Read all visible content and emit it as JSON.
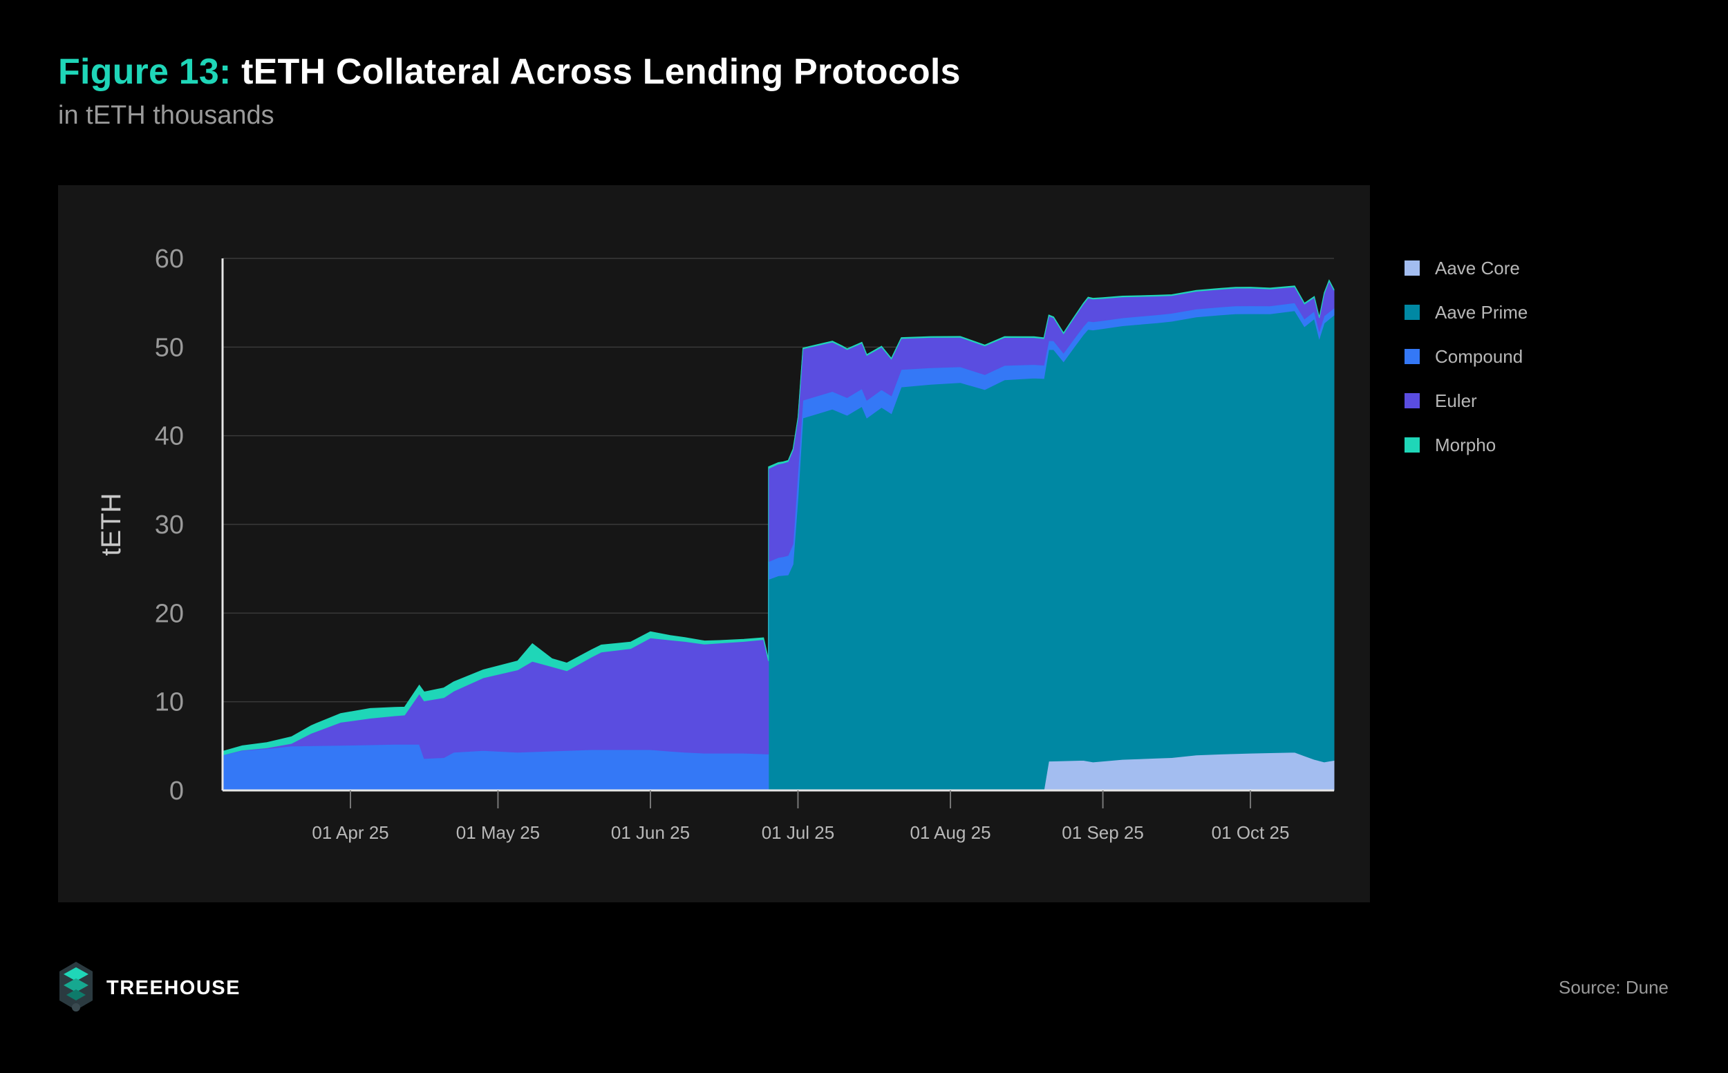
{
  "figure": {
    "label": "Figure 13:",
    "title": "tETH Collateral Across Lending Protocols",
    "subtitle": "in tETH thousands",
    "label_color": "#1fd6b8"
  },
  "brand": {
    "name": "TREEHOUSE",
    "logo_icon": "treehouse-logo-icon"
  },
  "source": "Source: Dune",
  "chart_data": {
    "type": "area",
    "stacked": true,
    "ylabel": "tETH",
    "xlabel": "",
    "ylim": [
      0,
      60
    ],
    "yticks": [
      "0",
      "10",
      "20",
      "30",
      "40",
      "50",
      "60"
    ],
    "x_range": [
      "2025-03-06",
      "2025-10-18"
    ],
    "xticks": [
      {
        "date": "2025-04-01",
        "label": "01 Apr 25"
      },
      {
        "date": "2025-05-01",
        "label": "01 May 25"
      },
      {
        "date": "2025-06-01",
        "label": "01 Jun 25"
      },
      {
        "date": "2025-07-01",
        "label": "01 Jul 25"
      },
      {
        "date": "2025-08-01",
        "label": "01 Aug 25"
      },
      {
        "date": "2025-09-01",
        "label": "01 Sep 25"
      },
      {
        "date": "2025-10-01",
        "label": "01 Oct 25"
      }
    ],
    "grid": true,
    "legend_position": "right",
    "series": [
      {
        "name": "Aave Core",
        "color": "#a3bdf0",
        "points": [
          [
            "2025-03-06",
            0
          ],
          [
            "2025-08-20",
            0
          ],
          [
            "2025-08-21",
            3.3
          ],
          [
            "2025-08-28",
            3.4
          ],
          [
            "2025-08-30",
            3.2
          ],
          [
            "2025-09-05",
            3.5
          ],
          [
            "2025-09-15",
            3.7
          ],
          [
            "2025-09-20",
            4.0
          ],
          [
            "2025-09-25",
            4.1
          ],
          [
            "2025-10-01",
            4.2
          ],
          [
            "2025-10-10",
            4.3
          ],
          [
            "2025-10-14",
            3.5
          ],
          [
            "2025-10-16",
            3.2
          ],
          [
            "2025-10-18",
            3.4
          ]
        ]
      },
      {
        "name": "Aave Prime",
        "color": "#0088a3",
        "points": [
          [
            "2025-03-06",
            0
          ],
          [
            "2025-06-25",
            0
          ],
          [
            "2025-06-25",
            23.8
          ],
          [
            "2025-06-27",
            24.2
          ],
          [
            "2025-06-29",
            24.3
          ],
          [
            "2025-06-30",
            25.5
          ],
          [
            "2025-07-01",
            33.0
          ],
          [
            "2025-07-02",
            42.0
          ],
          [
            "2025-07-05",
            42.5
          ],
          [
            "2025-07-08",
            43.0
          ],
          [
            "2025-07-11",
            42.3
          ],
          [
            "2025-07-14",
            43.3
          ],
          [
            "2025-07-15",
            42.0
          ],
          [
            "2025-07-18",
            43.2
          ],
          [
            "2025-07-20",
            42.5
          ],
          [
            "2025-07-22",
            45.5
          ],
          [
            "2025-07-28",
            45.8
          ],
          [
            "2025-08-03",
            46.0
          ],
          [
            "2025-08-08",
            45.2
          ],
          [
            "2025-08-12",
            46.3
          ],
          [
            "2025-08-18",
            46.5
          ],
          [
            "2025-08-22",
            46.4
          ],
          [
            "2025-08-24",
            45.0
          ],
          [
            "2025-08-26",
            46.5
          ],
          [
            "2025-08-29",
            48.7
          ],
          [
            "2025-09-05",
            48.9
          ],
          [
            "2025-09-12",
            49.1
          ],
          [
            "2025-09-20",
            49.4
          ],
          [
            "2025-09-28",
            49.6
          ],
          [
            "2025-10-05",
            49.5
          ],
          [
            "2025-10-10",
            49.8
          ],
          [
            "2025-10-12",
            48.4
          ],
          [
            "2025-10-14",
            49.7
          ],
          [
            "2025-10-15",
            47.6
          ],
          [
            "2025-10-16",
            49.5
          ],
          [
            "2025-10-18",
            50.2
          ]
        ]
      },
      {
        "name": "Compound",
        "color": "#3478f6",
        "points": [
          [
            "2025-03-06",
            4.0
          ],
          [
            "2025-03-10",
            4.5
          ],
          [
            "2025-03-15",
            4.7
          ],
          [
            "2025-03-20",
            5.0
          ],
          [
            "2025-04-01",
            5.1
          ],
          [
            "2025-04-10",
            5.2
          ],
          [
            "2025-04-15",
            5.2
          ],
          [
            "2025-04-16",
            3.6
          ],
          [
            "2025-04-20",
            3.7
          ],
          [
            "2025-04-22",
            4.3
          ],
          [
            "2025-04-28",
            4.5
          ],
          [
            "2025-05-05",
            4.3
          ],
          [
            "2025-05-15",
            4.5
          ],
          [
            "2025-05-20",
            4.6
          ],
          [
            "2025-06-01",
            4.6
          ],
          [
            "2025-06-08",
            4.3
          ],
          [
            "2025-06-12",
            4.2
          ],
          [
            "2025-06-20",
            4.2
          ],
          [
            "2025-06-25",
            4.1
          ],
          [
            "2025-06-25",
            2.0
          ],
          [
            "2025-06-28",
            2.1
          ],
          [
            "2025-06-30",
            2.3
          ],
          [
            "2025-07-01",
            3.0
          ],
          [
            "2025-07-02",
            2.0
          ],
          [
            "2025-07-20",
            2.0
          ],
          [
            "2025-08-20",
            1.5
          ],
          [
            "2025-08-21",
            1.0
          ],
          [
            "2025-09-01",
            0.9
          ],
          [
            "2025-10-10",
            0.9
          ],
          [
            "2025-10-18",
            0.8
          ]
        ]
      },
      {
        "name": "Euler",
        "color": "#5a4de0",
        "points": [
          [
            "2025-03-06",
            0
          ],
          [
            "2025-03-15",
            0.1
          ],
          [
            "2025-03-20",
            0.3
          ],
          [
            "2025-03-24",
            1.4
          ],
          [
            "2025-03-30",
            2.6
          ],
          [
            "2025-04-05",
            3.0
          ],
          [
            "2025-04-12",
            3.3
          ],
          [
            "2025-04-16",
            6.5
          ],
          [
            "2025-04-22",
            6.9
          ],
          [
            "2025-04-28",
            8.2
          ],
          [
            "2025-05-05",
            9.3
          ],
          [
            "2025-05-08",
            10.2
          ],
          [
            "2025-05-15",
            9.0
          ],
          [
            "2025-05-22",
            11.0
          ],
          [
            "2025-05-28",
            11.4
          ],
          [
            "2025-06-01",
            12.6
          ],
          [
            "2025-06-08",
            12.5
          ],
          [
            "2025-06-12",
            12.3
          ],
          [
            "2025-06-20",
            12.6
          ],
          [
            "2025-06-24",
            12.9
          ],
          [
            "2025-06-25",
            10.5
          ],
          [
            "2025-06-25",
            10.5
          ],
          [
            "2025-06-30",
            10.6
          ],
          [
            "2025-07-01",
            6.0
          ],
          [
            "2025-07-02",
            5.8
          ],
          [
            "2025-07-10",
            5.5
          ],
          [
            "2025-07-18",
            4.8
          ],
          [
            "2025-07-22",
            3.5
          ],
          [
            "2025-08-05",
            3.3
          ],
          [
            "2025-08-20",
            3.0
          ],
          [
            "2025-08-24",
            2.2
          ],
          [
            "2025-08-29",
            2.6
          ],
          [
            "2025-09-15",
            2.0
          ],
          [
            "2025-10-01",
            2.0
          ],
          [
            "2025-10-10",
            1.8
          ],
          [
            "2025-10-15",
            1.5
          ],
          [
            "2025-10-17",
            3.5
          ],
          [
            "2025-10-18",
            2.0
          ]
        ]
      },
      {
        "name": "Morpho",
        "color": "#1fd6b8",
        "points": [
          [
            "2025-03-06",
            0.4
          ],
          [
            "2025-03-15",
            0.6
          ],
          [
            "2025-03-25",
            0.9
          ],
          [
            "2025-04-05",
            1.1
          ],
          [
            "2025-04-12",
            0.9
          ],
          [
            "2025-04-20",
            1.1
          ],
          [
            "2025-04-28",
            0.9
          ],
          [
            "2025-05-05",
            1.0
          ],
          [
            "2025-05-08",
            2.0
          ],
          [
            "2025-05-12",
            0.9
          ],
          [
            "2025-05-22",
            0.8
          ],
          [
            "2025-06-01",
            0.7
          ],
          [
            "2025-06-05",
            0.5
          ],
          [
            "2025-06-15",
            0.3
          ],
          [
            "2025-06-24",
            0.2
          ],
          [
            "2025-06-25",
            0.2
          ],
          [
            "2025-07-01",
            0.1
          ],
          [
            "2025-10-18",
            0.1
          ]
        ]
      }
    ]
  }
}
